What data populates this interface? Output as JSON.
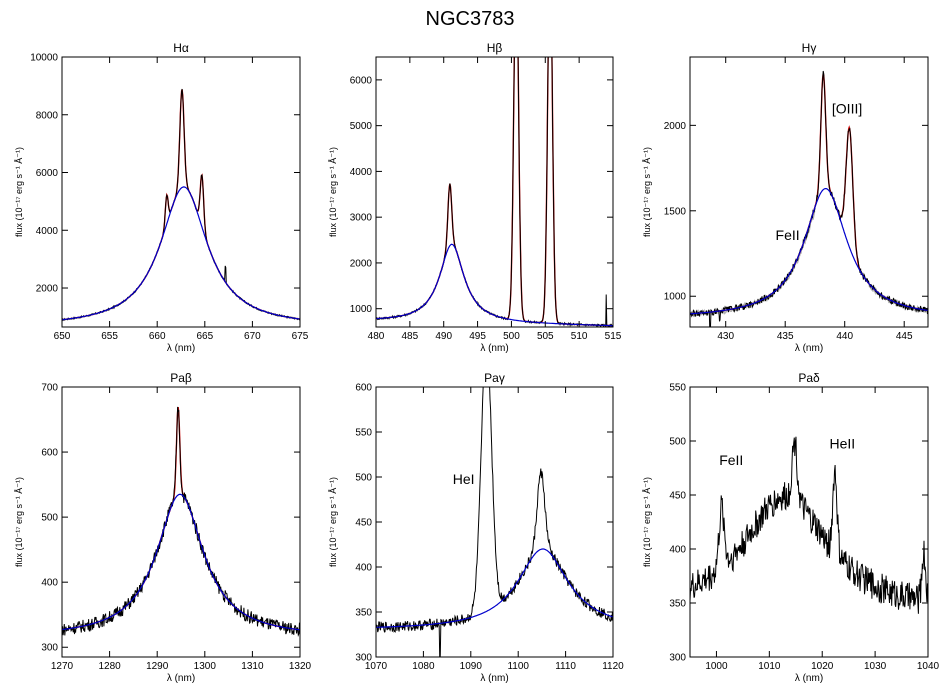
{
  "figure": {
    "title": "NGC3783"
  },
  "colors": {
    "data": "#000000",
    "fit_total": "#cc0000",
    "fit_broad": "#0000cc",
    "alt_data": "#b0b0b0"
  },
  "chart_data": [
    {
      "type": "line",
      "title": "Hα",
      "xlabel": "λ (nm)",
      "ylabel": "flux (10⁻¹⁷ erg s⁻¹ Å⁻¹)",
      "xlim": [
        650,
        675
      ],
      "ylim": [
        650,
        10000
      ],
      "xticks": [
        650,
        655,
        660,
        665,
        670,
        675
      ],
      "yticks": [
        2000,
        4000,
        6000,
        8000,
        10000
      ],
      "continuum": 650,
      "broad": {
        "center": 662.8,
        "amp": 4850,
        "width": 3.0
      },
      "narrow": [
        {
          "center": 662.6,
          "amp": 3400,
          "width": 0.22
        },
        {
          "center": 664.7,
          "amp": 1800,
          "width": 0.18
        },
        {
          "center": 661.0,
          "amp": 1000,
          "width": 0.15
        }
      ],
      "noise": 30,
      "spikes": [
        {
          "x": 667.2,
          "dy": 550
        }
      ],
      "annotations": []
    },
    {
      "type": "line",
      "title": "Hβ",
      "xlabel": "λ (nm)",
      "ylabel": "flux (10⁻¹⁷ erg s⁻¹ Å⁻¹)",
      "xlim": [
        480,
        515
      ],
      "ylim": [
        600,
        6500
      ],
      "xticks": [
        480,
        485,
        490,
        495,
        500,
        505,
        510,
        515
      ],
      "yticks": [
        1000,
        2000,
        3000,
        4000,
        5000,
        6000
      ],
      "continuum": 720,
      "continuum_slope": -3,
      "broad": {
        "center": 491.2,
        "amp": 1720,
        "width": 2.2
      },
      "narrow": [
        {
          "center": 490.9,
          "amp": 1350,
          "width": 0.28
        },
        {
          "center": 500.7,
          "amp": 8000,
          "width": 0.35
        },
        {
          "center": 505.7,
          "amp": 8000,
          "width": 0.35
        }
      ],
      "noise": 25,
      "spikes": [
        {
          "x": 514,
          "dy": 700
        }
      ],
      "annotations": []
    },
    {
      "type": "line",
      "title": "Hγ",
      "xlabel": "λ (nm)",
      "ylabel": "flux (10⁻¹⁷ erg s⁻¹ Å⁻¹)",
      "xlim": [
        427,
        447
      ],
      "ylim": [
        820,
        2400
      ],
      "xticks": [
        430,
        435,
        440,
        445
      ],
      "yticks": [
        1000,
        1500,
        2000
      ],
      "continuum": 870,
      "broad": {
        "center": 438.4,
        "amp": 760,
        "width": 2.2
      },
      "narrow": [
        {
          "center": 438.2,
          "amp": 680,
          "width": 0.2
        },
        {
          "center": 440.4,
          "amp": 700,
          "width": 0.28
        }
      ],
      "noise": 20,
      "spikes": [
        {
          "x": 428.7,
          "dy": -120
        },
        {
          "x": 429.5,
          "dy": -70
        }
      ],
      "annotations": [
        {
          "text": "FeII",
          "x": 435.2,
          "y": 1330
        },
        {
          "text": "[OIII]",
          "x": 440.2,
          "y": 2070
        }
      ]
    },
    {
      "type": "line",
      "title": "Paβ",
      "xlabel": "λ (nm)",
      "ylabel": "flux (10⁻¹⁷ erg s⁻¹ Å⁻¹)",
      "xlim": [
        1270,
        1320
      ],
      "ylim": [
        285,
        700
      ],
      "xticks": [
        1270,
        1280,
        1290,
        1300,
        1310,
        1320
      ],
      "yticks": [
        300,
        400,
        500,
        600,
        700
      ],
      "continuum": 315,
      "broad": {
        "center": 1294.8,
        "amp": 220,
        "width": 6.0
      },
      "narrow": [
        {
          "center": 1294.4,
          "amp": 135,
          "width": 0.35
        }
      ],
      "noise": 10,
      "spikes": [],
      "annotations": []
    },
    {
      "type": "line",
      "title": "Paγ",
      "xlabel": "λ (nm)",
      "ylabel": "flux (10⁻¹⁷ erg s⁻¹ Å⁻¹)",
      "xlim": [
        1070,
        1120
      ],
      "ylim": [
        300,
        600
      ],
      "xticks": [
        1070,
        1080,
        1090,
        1100,
        1110,
        1120
      ],
      "yticks": [
        300,
        350,
        400,
        450,
        500,
        550,
        600
      ],
      "continuum": 330,
      "broad": {
        "center": 1105.2,
        "amp": 90,
        "width": 6.5
      },
      "narrow": [
        {
          "center": 1093.3,
          "amp": 300,
          "width": 1.1
        },
        {
          "center": 1104.8,
          "amp": 85,
          "width": 0.8
        }
      ],
      "noise": 6,
      "spikes": [
        {
          "x": 1083.5,
          "dy": -40
        }
      ],
      "annotations": [
        {
          "text": "HeI",
          "x": 1088.5,
          "y": 492
        }
      ]
    },
    {
      "type": "line",
      "title": "Paδ",
      "xlabel": "λ (nm)",
      "ylabel": "flux (10⁻¹⁷ erg s⁻¹ Å⁻¹)",
      "xlim": [
        995,
        1040
      ],
      "ylim": [
        300,
        550
      ],
      "xticks": [
        1000,
        1010,
        1020,
        1030,
        1040
      ],
      "yticks": [
        300,
        350,
        400,
        450,
        500,
        550
      ],
      "continuum": 338,
      "broad": {
        "center": 1013.0,
        "amp": 110,
        "width": 10.0
      },
      "narrow": [
        {
          "center": 1014.8,
          "amp": 55,
          "width": 0.5
        },
        {
          "center": 1022.4,
          "amp": 75,
          "width": 0.4
        },
        {
          "center": 1001.0,
          "amp": 55,
          "width": 0.5
        },
        {
          "center": 1039.2,
          "amp": 45,
          "width": 0.35
        }
      ],
      "noise": 14,
      "spikes": [],
      "annotations": [
        {
          "text": "FeII",
          "x": 1002.8,
          "y": 478
        },
        {
          "text": "HeII",
          "x": 1023.8,
          "y": 493
        }
      ]
    }
  ]
}
